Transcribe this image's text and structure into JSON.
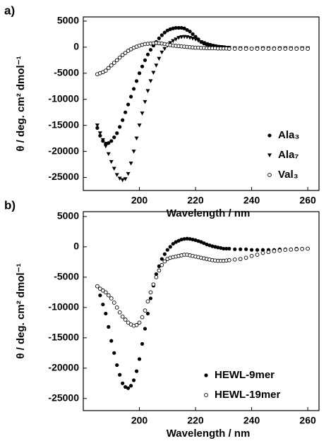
{
  "chart_data": [
    {
      "type": "scatter",
      "panel_label": "a)",
      "xlabel": "Wavelength / nm",
      "ylabel": "θ / deg. cm² dmol⁻¹",
      "xlim": [
        180,
        264
      ],
      "xticks": [
        200,
        220,
        240,
        260
      ],
      "ylim": [
        -27500,
        5800
      ],
      "yticks": [
        5000,
        0,
        -5000,
        -10000,
        -15000,
        -20000,
        -25000
      ],
      "legend": "lower right",
      "x": [
        185,
        186,
        187,
        188,
        189,
        190,
        191,
        192,
        193,
        194,
        195,
        196,
        197,
        198,
        199,
        200,
        201,
        202,
        203,
        204,
        205,
        206,
        207,
        208,
        209,
        210,
        211,
        212,
        213,
        214,
        215,
        216,
        217,
        218,
        219,
        220,
        221,
        222,
        223,
        224,
        225,
        226,
        227,
        228,
        229,
        230,
        231,
        232,
        234,
        236,
        238,
        240,
        242,
        244,
        246,
        248,
        250,
        252,
        254,
        256,
        258,
        260
      ],
      "series": [
        {
          "name": "Ala₃",
          "color": "#000000",
          "marker": "circle",
          "values": [
            -15500,
            -17000,
            -18000,
            -18500,
            -18400,
            -18000,
            -17300,
            -16500,
            -15300,
            -14000,
            -12500,
            -11000,
            -9500,
            -8000,
            -6500,
            -5000,
            -3700,
            -2500,
            -1400,
            -500,
            300,
            1000,
            1700,
            2300,
            2800,
            3200,
            3450,
            3600,
            3700,
            3700,
            3700,
            3600,
            3300,
            3000,
            2500,
            2000,
            1500,
            1000,
            700,
            500,
            300,
            200,
            100,
            0,
            -100,
            -200,
            -200,
            -200,
            -300,
            -300,
            -200,
            -300,
            -200,
            -200,
            -300,
            -200,
            -200,
            -200,
            -300,
            -200,
            -200,
            -300
          ]
        },
        {
          "name": "Ala₇",
          "color": "#000000",
          "marker": "triangle",
          "values": [
            -15000,
            -16500,
            -17800,
            -19000,
            -20500,
            -22000,
            -23300,
            -24500,
            -25200,
            -25500,
            -25300,
            -24300,
            -22300,
            -20000,
            -17500,
            -15000,
            -12700,
            -10500,
            -8400,
            -6500,
            -4900,
            -3500,
            -2200,
            -1000,
            -300,
            300,
            800,
            1200,
            1500,
            1800,
            1950,
            2000,
            1950,
            1800,
            1650,
            1500,
            1250,
            1000,
            800,
            600,
            450,
            300,
            200,
            100,
            50,
            0,
            -100,
            -100,
            -200,
            -200,
            -200,
            -300,
            -200,
            -200,
            -200,
            -300,
            -200,
            -200,
            -200,
            -300,
            -200,
            -200
          ]
        },
        {
          "name": "Val₃",
          "color": "#000000",
          "marker": "open-circle",
          "values": [
            -5200,
            -5000,
            -4800,
            -4500,
            -4000,
            -3500,
            -3000,
            -2500,
            -2000,
            -1500,
            -1100,
            -700,
            -400,
            -100,
            100,
            300,
            450,
            600,
            650,
            700,
            750,
            800,
            750,
            700,
            600,
            500,
            400,
            300,
            250,
            200,
            150,
            100,
            50,
            0,
            -50,
            -100,
            -100,
            -150,
            -150,
            -200,
            -200,
            -200,
            -200,
            -250,
            -250,
            -250,
            -250,
            -300,
            -300,
            -300,
            -300,
            -300,
            -300,
            -300,
            -300,
            -300,
            -300,
            -300,
            -300,
            -300,
            -300,
            -300
          ]
        }
      ]
    },
    {
      "type": "scatter",
      "panel_label": "b)",
      "xlabel": "Wavelength / nm",
      "ylabel": "θ / deg. cm² dmol⁻¹",
      "xlim": [
        180,
        264
      ],
      "xticks": [
        200,
        220,
        240,
        260
      ],
      "ylim": [
        -27000,
        5800
      ],
      "yticks": [
        5000,
        0,
        -5000,
        -10000,
        -15000,
        -20000,
        -25000
      ],
      "legend": "lower right",
      "x": [
        185,
        186,
        187,
        188,
        189,
        190,
        191,
        192,
        193,
        194,
        195,
        196,
        197,
        198,
        199,
        200,
        201,
        202,
        203,
        204,
        205,
        206,
        207,
        208,
        209,
        210,
        211,
        212,
        213,
        214,
        215,
        216,
        217,
        218,
        219,
        220,
        221,
        222,
        223,
        224,
        225,
        226,
        227,
        228,
        229,
        230,
        231,
        232,
        234,
        236,
        238,
        240,
        242,
        244,
        246,
        248,
        250,
        252,
        254,
        256,
        258,
        260
      ],
      "series": [
        {
          "name": "HEWL-9mer",
          "color": "#000000",
          "marker": "circle",
          "values": [
            -6500,
            -8000,
            -9500,
            -11000,
            -13200,
            -15500,
            -17500,
            -19500,
            -21100,
            -22500,
            -23100,
            -23300,
            -22900,
            -22000,
            -20500,
            -18500,
            -16000,
            -13500,
            -11000,
            -8500,
            -6400,
            -4500,
            -3200,
            -2000,
            -1200,
            -500,
            0,
            500,
            800,
            1000,
            1200,
            1300,
            1350,
            1300,
            1200,
            1100,
            950,
            800,
            600,
            400,
            250,
            100,
            0,
            -100,
            -200,
            -300,
            -300,
            -300,
            -400,
            -400,
            -400,
            -500,
            -500,
            -500,
            -500,
            -500,
            -400,
            -400,
            -400,
            -300,
            -300,
            -300
          ]
        },
        {
          "name": "HEWL-19mer",
          "color": "#000000",
          "marker": "open-circle",
          "values": [
            -6500,
            -6900,
            -7200,
            -7500,
            -8000,
            -8500,
            -9200,
            -10000,
            -10800,
            -11500,
            -12000,
            -12500,
            -12800,
            -13000,
            -12900,
            -12500,
            -11600,
            -10500,
            -9000,
            -7500,
            -6200,
            -5000,
            -3900,
            -3000,
            -2400,
            -2000,
            -1800,
            -1700,
            -1600,
            -1500,
            -1400,
            -1300,
            -1300,
            -1400,
            -1500,
            -1600,
            -1700,
            -1800,
            -1900,
            -2000,
            -2100,
            -2200,
            -2250,
            -2300,
            -2300,
            -2300,
            -2250,
            -2200,
            -2100,
            -2000,
            -1800,
            -1500,
            -1300,
            -1000,
            -850,
            -700,
            -600,
            -500,
            -450,
            -400,
            -350,
            -300
          ]
        }
      ]
    }
  ]
}
